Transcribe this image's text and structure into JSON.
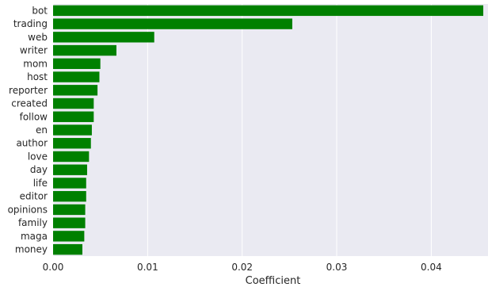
{
  "chart_data": {
    "type": "bar",
    "orientation": "horizontal",
    "categories": [
      "bot",
      "trading",
      "web",
      "writer",
      "mom",
      "host",
      "reporter",
      "created",
      "follow",
      "en",
      "author",
      "love",
      "day",
      "life",
      "editor",
      "opinions",
      "family",
      "maga",
      "money"
    ],
    "values": [
      0.0455,
      0.0253,
      0.0107,
      0.0067,
      0.005,
      0.0049,
      0.0047,
      0.0043,
      0.0043,
      0.0041,
      0.004,
      0.0038,
      0.0036,
      0.0035,
      0.0035,
      0.0034,
      0.0034,
      0.0033,
      0.0031
    ],
    "title": "",
    "xlabel": "Coefficient",
    "ylabel": "",
    "xlim": [
      0,
      0.046
    ],
    "xticks": [
      0.0,
      0.01,
      0.02,
      0.03,
      0.04
    ],
    "xtick_labels": [
      "0.00",
      "0.01",
      "0.02",
      "0.03",
      "0.04"
    ],
    "grid": true,
    "bar_color": "#008000",
    "background_color": "#eaeaf2",
    "grid_color": "#ffffff"
  }
}
